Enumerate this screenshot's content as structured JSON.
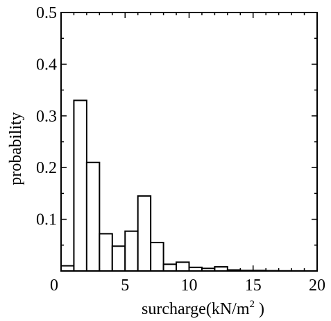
{
  "chart_data": {
    "type": "bar",
    "chart_kind": "histogram",
    "bin_width": 1,
    "bin_starts": [
      0,
      1,
      2,
      3,
      4,
      5,
      6,
      7,
      8,
      9,
      10,
      11,
      12,
      13,
      14,
      15,
      16,
      17,
      18,
      19
    ],
    "values": [
      0.01,
      0.33,
      0.21,
      0.072,
      0.048,
      0.077,
      0.145,
      0.055,
      0.013,
      0.017,
      0.007,
      0.005,
      0.008,
      0.002,
      0.001,
      0.001,
      0.0005,
      0.0003,
      0.0002,
      0.0001
    ],
    "title": "",
    "xlabel": "surcharge(kN/m",
    "xlabel_superscript": "2",
    "xlabel_suffix": " )",
    "ylabel": "probability",
    "xlim": [
      0,
      20
    ],
    "ylim": [
      0,
      0.5
    ],
    "x_ticks": [
      0,
      5,
      10,
      15,
      20
    ],
    "x_tick_labels": [
      "0",
      "5",
      "10",
      "15",
      "20"
    ],
    "y_ticks": [
      0.1,
      0.2,
      0.3,
      0.4,
      0.5
    ],
    "y_tick_labels": [
      "0.1",
      "0.2",
      "0.3",
      "0.4",
      "0.5"
    ],
    "grid": false,
    "legend": "none",
    "colors": {
      "bar_fill": "#ffffff",
      "bar_stroke": "#000000",
      "axis": "#000000"
    }
  }
}
